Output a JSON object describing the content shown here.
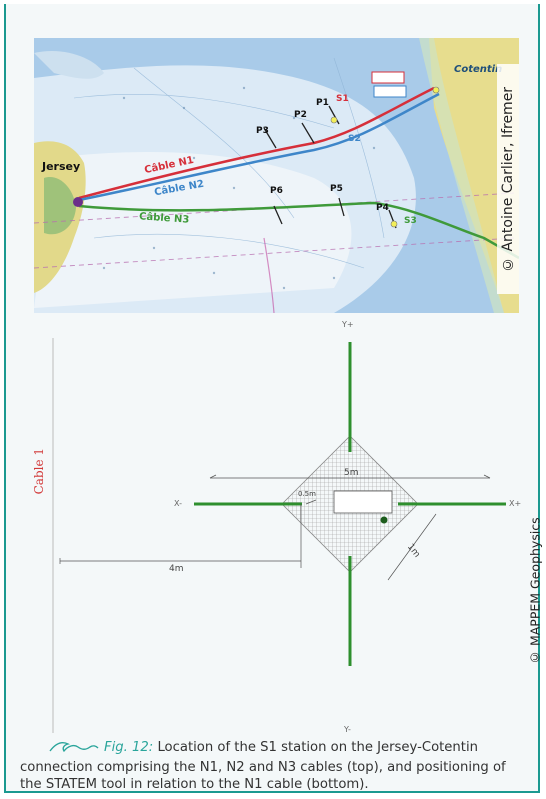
{
  "map": {
    "place_jersey": "Jersey",
    "place_cotentin": "Cotentin",
    "cable_n1": "Câble N1",
    "cable_n2": "Câble N2",
    "cable_n3": "Câble N3",
    "stations": [
      "P1",
      "P2",
      "P3",
      "S1",
      "S2",
      "P5",
      "P6",
      "P4",
      "S3"
    ],
    "credit": "© Antoine Carlier, Ifremer",
    "colors": {
      "cable_n1": "#d62f3a",
      "cable_n2": "#3e86c9",
      "cable_n3": "#3f9a3a",
      "sea_shallow": "#dceaf6",
      "sea_deep": "#a9cbe9",
      "land": "#e7dd8e"
    }
  },
  "diagram": {
    "cable_label": "Cable 1",
    "axis_y_plus": "Y+",
    "axis_y_minus": "Y-",
    "axis_x_plus": "X+",
    "axis_x_minus": "X-",
    "dim_width": "5m",
    "dim_distance": "4m",
    "dim_diagonal": "1m",
    "dim_small": "0.5m",
    "credit": "© MAPPEM Geophysics",
    "colors": {
      "arms": "#2e8f2e",
      "cable": "#d23a3a"
    }
  },
  "caption": {
    "fig_label": "Fig. 12:",
    "text": "Location of the S1 station on the Jersey-Cotentin connection comprising the N1, N2 and N3 cables (top), and positioning of the STATEM tool in relation to the N1 cable (bottom)."
  }
}
